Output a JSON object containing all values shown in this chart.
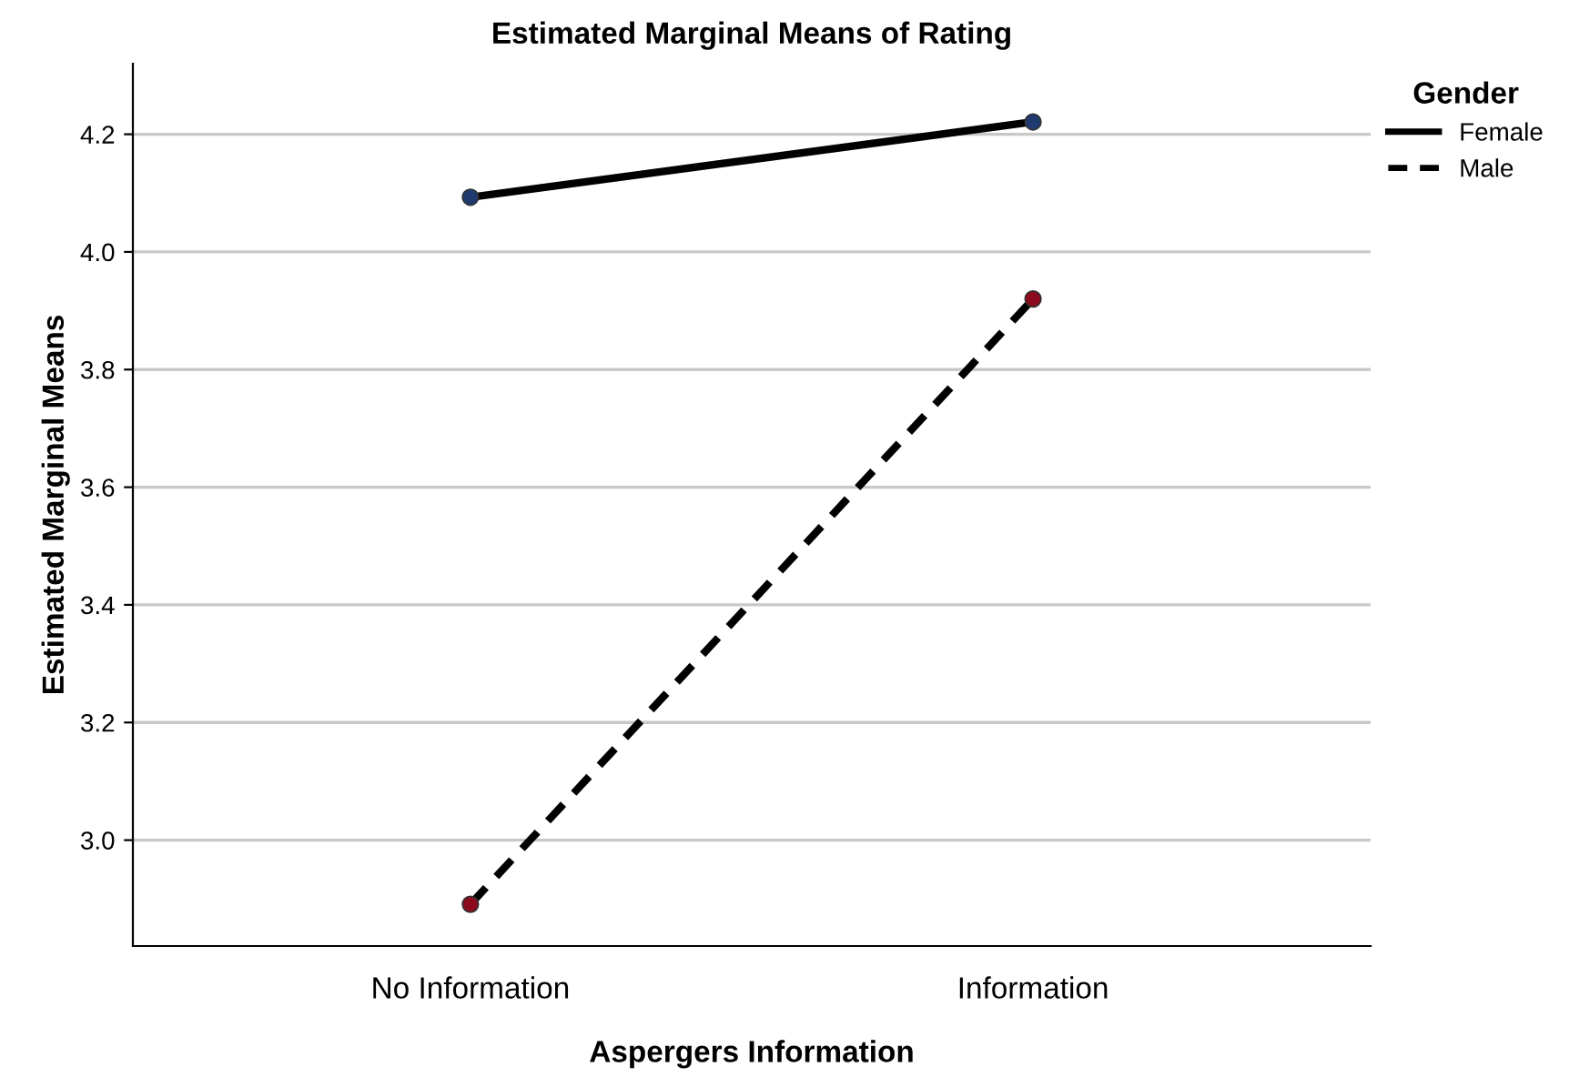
{
  "chart_data": {
    "type": "line",
    "title": "Estimated Marginal Means of Rating",
    "xlabel": "Aspergers Information",
    "ylabel": "Estimated Marginal Means",
    "legend_title": "Gender",
    "categories": [
      "No Information",
      "Information"
    ],
    "series": [
      {
        "name": "Female",
        "color": "#000000",
        "colors": [
          "#1f3a6e",
          "#1f3a6e"
        ],
        "line_style": "solid",
        "values": [
          4.093,
          4.221
        ]
      },
      {
        "name": "Male",
        "color": "#000000",
        "colors": [
          "#8b0a1e",
          "#8b0a1e"
        ],
        "line_style": "dashed",
        "values": [
          2.891,
          3.92
        ]
      }
    ],
    "ylim": [
      2.82,
      4.32
    ],
    "yticks": [
      {
        "value": 3.0,
        "label": "3.0"
      },
      {
        "value": 3.2,
        "label": "3.2"
      },
      {
        "value": 3.4,
        "label": "3.4"
      },
      {
        "value": 3.6,
        "label": "3.6"
      },
      {
        "value": 3.8,
        "label": "3.8"
      },
      {
        "value": 4.0,
        "label": "4.0"
      },
      {
        "value": 4.2,
        "label": "4.2"
      }
    ],
    "grid": "y",
    "legend": "top right",
    "marker": "circle"
  }
}
